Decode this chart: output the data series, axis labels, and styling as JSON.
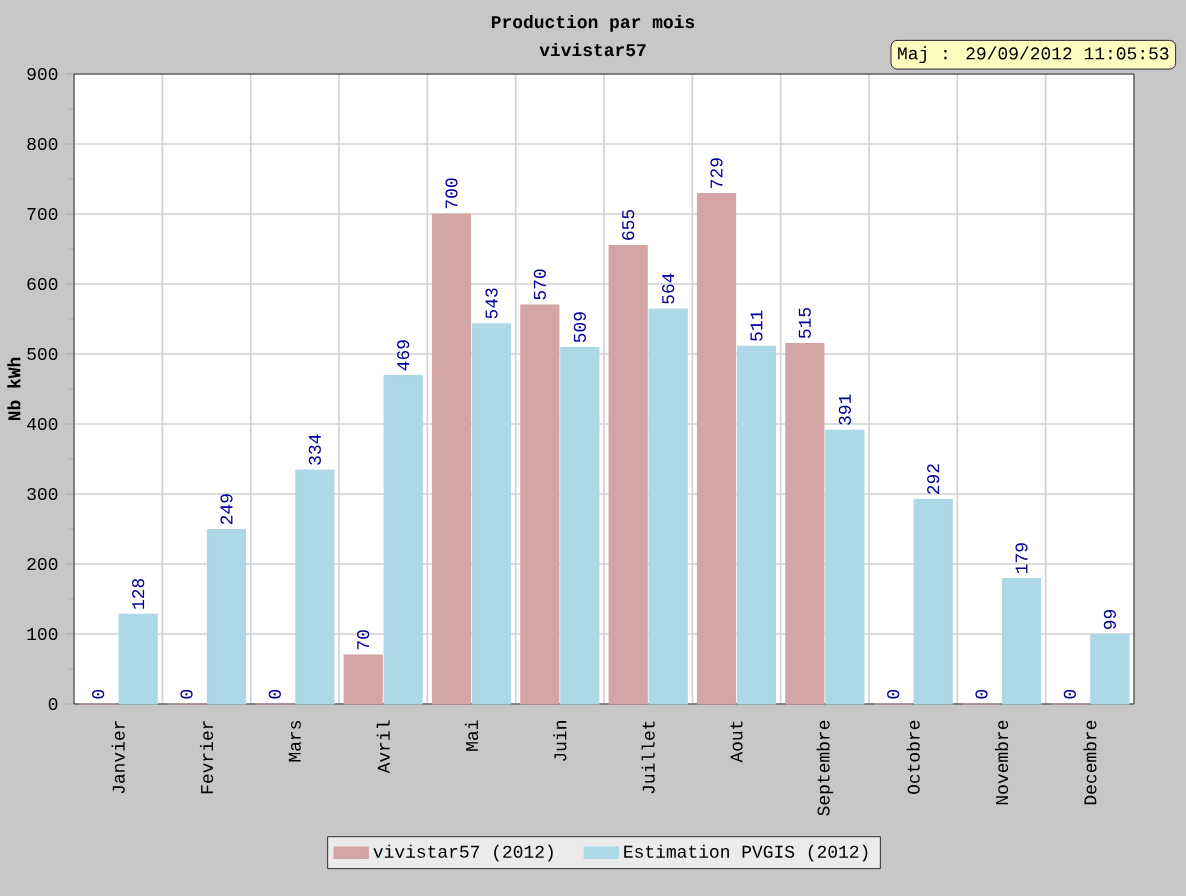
{
  "chart_data": {
    "type": "bar",
    "title": "Production par mois",
    "subtitle": "vivistar57",
    "ylabel": "Nb kWh",
    "categories": [
      "Janvier",
      "Fevrier",
      "Mars",
      "Avril",
      "Mai",
      "Juin",
      "Juillet",
      "Aout",
      "Septembre",
      "Octobre",
      "Novembre",
      "Decembre"
    ],
    "series": [
      {
        "name": "vivistar57 (2012)",
        "color": "#d4a5a5",
        "values": [
          0,
          0,
          0,
          70,
          700,
          570,
          655,
          729,
          515,
          0,
          0,
          0
        ]
      },
      {
        "name": "Estimation PVGIS (2012)",
        "color": "#add8e6",
        "values": [
          128,
          249,
          334,
          469,
          543,
          509,
          564,
          511,
          391,
          292,
          179,
          99
        ]
      }
    ],
    "ylim": [
      0,
      900
    ],
    "yticks": [
      0,
      100,
      200,
      300,
      400,
      500,
      600,
      700,
      800,
      900
    ],
    "grid": true,
    "legend": "bottom",
    "data_labels": true,
    "annotations": [
      "Maj : 29/09/2012 11:05:53"
    ]
  }
}
